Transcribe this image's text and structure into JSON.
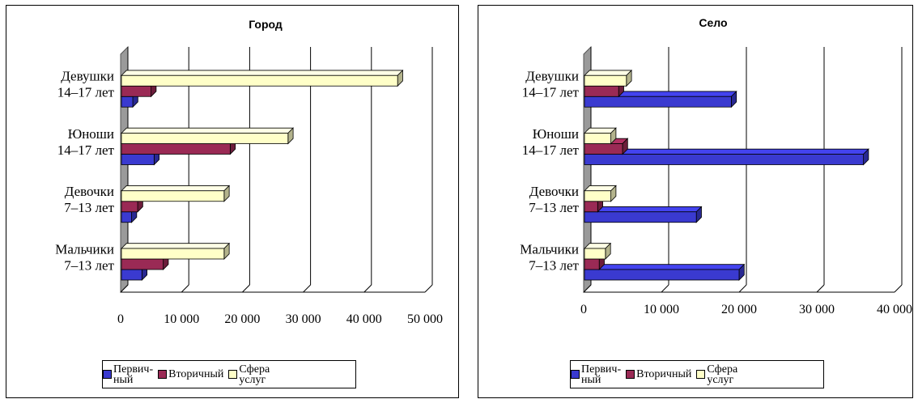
{
  "legend": {
    "items": [
      {
        "label": "Первич-\nный",
        "color": "#3a3ad0"
      },
      {
        "label": "Вторичный",
        "color": "#9a2a55"
      },
      {
        "label": "Сфера\nуслуг",
        "color": "#ffffc8"
      }
    ]
  },
  "chart_data": [
    {
      "type": "bar",
      "orientation": "horizontal",
      "title": "Город",
      "categories": [
        "Девушки\n14–17 лет",
        "Юноши\n14–17 лет",
        "Девочки\n7–13 лет",
        "Мальчики\n7–13 лет"
      ],
      "series": [
        {
          "name": "Первичный",
          "values": [
            2000,
            5500,
            1800,
            3500
          ]
        },
        {
          "name": "Вторичный",
          "values": [
            5000,
            18000,
            2800,
            7000
          ]
        },
        {
          "name": "Сфера услуг",
          "values": [
            45500,
            27500,
            17000,
            17000
          ]
        }
      ],
      "xlim": [
        0,
        50000
      ],
      "xticks": [
        "0",
        "10 000",
        "20 000",
        "30 000",
        "40 000",
        "50 000"
      ]
    },
    {
      "type": "bar",
      "orientation": "horizontal",
      "title": "Село",
      "categories": [
        "Девушки\n14–17 лет",
        "Юноши\n14–17 лет",
        "Девочки\n7–13 лет",
        "Мальчики\n7–13 лет"
      ],
      "series": [
        {
          "name": "Первичный",
          "values": [
            19000,
            36000,
            14500,
            20000
          ]
        },
        {
          "name": "Вторичный",
          "values": [
            4500,
            5000,
            1800,
            2000
          ]
        },
        {
          "name": "Сфера услуг",
          "values": [
            5500,
            3500,
            3500,
            2800
          ]
        }
      ],
      "xlim": [
        0,
        40000
      ],
      "xticks": [
        "0",
        "10 000",
        "20 000",
        "30 000",
        "40 000"
      ]
    }
  ]
}
